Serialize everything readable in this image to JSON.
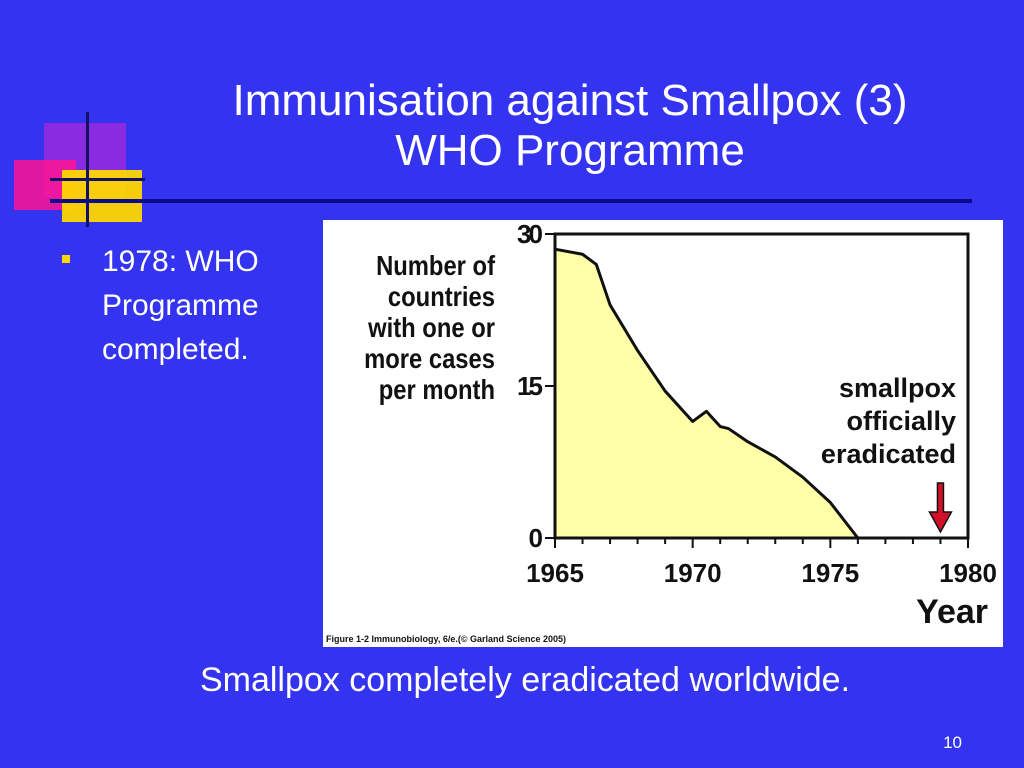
{
  "slide": {
    "title_line1": "Immunisation against Smallpox (3)",
    "title_line2": "WHO Programme",
    "bullet_line1": "1978: WHO",
    "bullet_line2": "Programme",
    "bullet_line3": "completed.",
    "caption": "Smallpox completely eradicated worldwide.",
    "page_number": "10"
  },
  "chart_data": {
    "type": "area",
    "x": [
      1965,
      1966,
      1966.5,
      1967,
      1968,
      1969,
      1970,
      1970.5,
      1971,
      1971.3,
      1972,
      1973,
      1974,
      1975,
      1976
    ],
    "y": [
      28.5,
      28,
      27,
      23,
      18.5,
      14.5,
      11.5,
      12.5,
      11,
      10.8,
      9.5,
      8,
      6,
      3.5,
      0
    ],
    "ylim": [
      0,
      30
    ],
    "xlim": [
      1965,
      1980
    ],
    "yticks": [
      "30",
      "15",
      "0"
    ],
    "xticks": [
      "1965",
      "1970",
      "1975",
      "1980"
    ],
    "ylabel_lines": [
      "Number of",
      "countries",
      "with one or",
      "more cases",
      "per month"
    ],
    "xlabel": "Year",
    "annotation_lines": [
      "smallpox",
      "officially",
      "eradicated"
    ],
    "annotation_x": 1979,
    "source": "Figure 1-2 Immunobiology, 6/e.(© Garland Science 2005)",
    "fill_color": "#ffffa8",
    "arrow_color": "#d3102a"
  }
}
